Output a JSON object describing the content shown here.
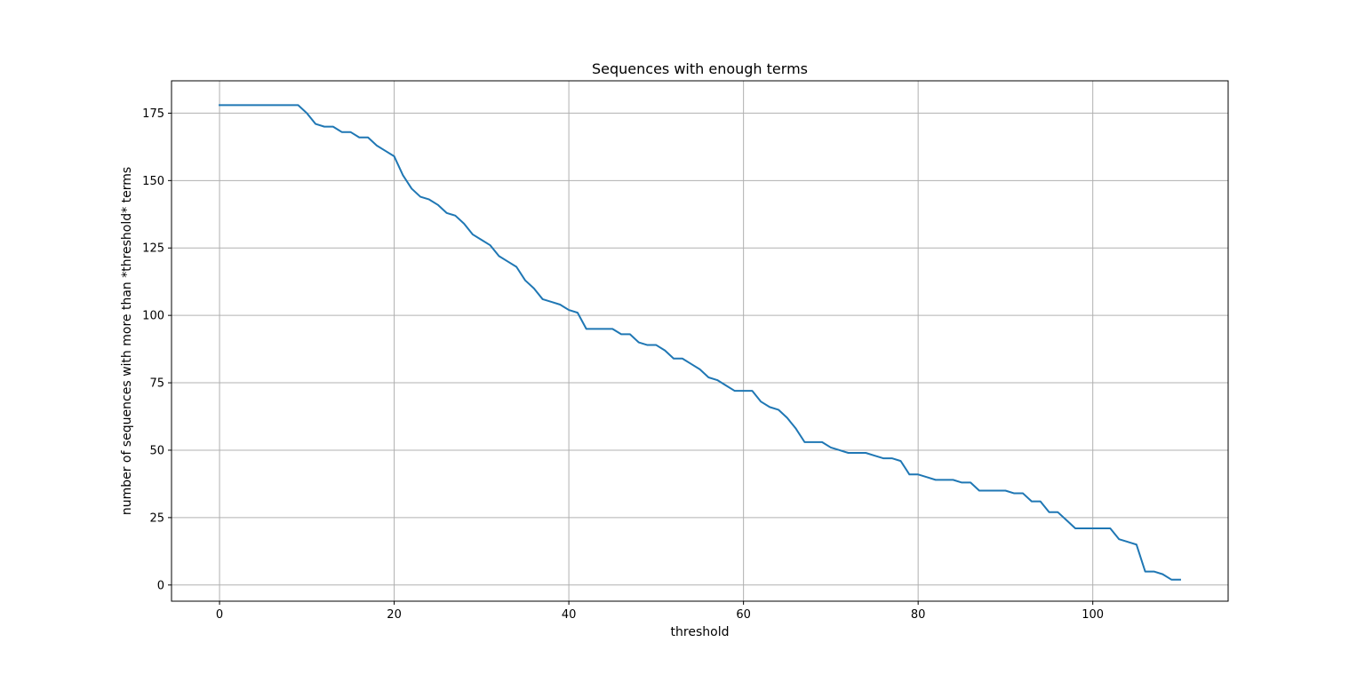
{
  "chart_data": {
    "type": "line",
    "title": "Sequences with enough terms",
    "xlabel": "threshold",
    "ylabel": "number of sequences with more than *threshold* terms",
    "xlim": [
      -5.5,
      115.5
    ],
    "ylim": [
      -6,
      187
    ],
    "xticks": [
      0,
      20,
      40,
      60,
      80,
      100
    ],
    "yticks": [
      0,
      25,
      50,
      75,
      100,
      125,
      150,
      175
    ],
    "grid": true,
    "line_color": "#1f77b4",
    "series": [
      {
        "x": [
          0,
          1,
          2,
          3,
          4,
          5,
          6,
          7,
          8,
          9,
          10,
          11,
          12,
          13,
          14,
          15,
          16,
          17,
          18,
          19,
          20,
          21,
          22,
          23,
          24,
          25,
          26,
          27,
          28,
          29,
          30,
          31,
          32,
          33,
          34,
          35,
          36,
          37,
          38,
          39,
          40,
          41,
          42,
          43,
          44,
          45,
          46,
          47,
          48,
          49,
          50,
          51,
          52,
          53,
          54,
          55,
          56,
          57,
          58,
          59,
          60,
          61,
          62,
          63,
          64,
          65,
          66,
          67,
          68,
          69,
          70,
          71,
          72,
          73,
          74,
          75,
          76,
          77,
          78,
          79,
          80,
          81,
          82,
          83,
          84,
          85,
          86,
          87,
          88,
          89,
          90,
          91,
          92,
          93,
          94,
          95,
          96,
          97,
          98,
          99,
          100,
          101,
          102,
          103,
          104,
          105,
          106,
          107,
          108,
          109,
          110
        ],
        "values": [
          178,
          178,
          178,
          178,
          178,
          178,
          178,
          178,
          178,
          178,
          175,
          171,
          170,
          170,
          168,
          168,
          166,
          166,
          163,
          161,
          159,
          152,
          147,
          144,
          143,
          141,
          138,
          137,
          134,
          130,
          128,
          126,
          122,
          120,
          118,
          113,
          110,
          106,
          105,
          104,
          102,
          101,
          95,
          95,
          95,
          95,
          93,
          93,
          90,
          89,
          89,
          87,
          84,
          84,
          82,
          80,
          77,
          76,
          74,
          72,
          72,
          72,
          68,
          66,
          65,
          62,
          58,
          53,
          53,
          53,
          51,
          50,
          49,
          49,
          49,
          48,
          47,
          47,
          46,
          41,
          41,
          40,
          39,
          39,
          39,
          38,
          38,
          35,
          35,
          35,
          35,
          34,
          34,
          31,
          31,
          27,
          27,
          24,
          21,
          21,
          21,
          21,
          21,
          17,
          16,
          15,
          5,
          5,
          4,
          2,
          2
        ]
      }
    ]
  }
}
